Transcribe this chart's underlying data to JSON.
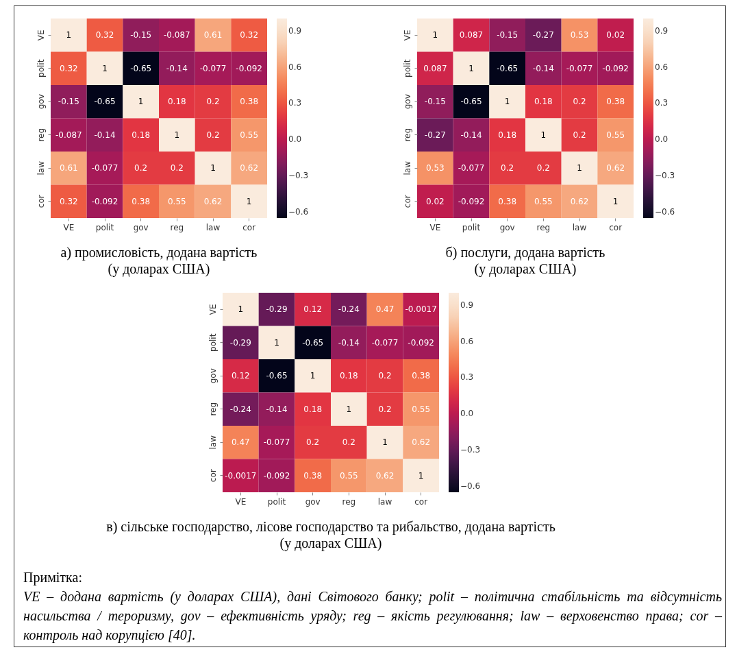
{
  "chart_data": [
    {
      "type": "heatmap",
      "title": "а) промисловість, додана вартість",
      "subtitle": "(у доларах США)",
      "categories": [
        "VE",
        "polit",
        "gov",
        "reg",
        "law",
        "cor"
      ],
      "y_categories": [
        "VE",
        "polit",
        "gov",
        "reg",
        "law",
        "cor"
      ],
      "cells": [
        [
          1,
          0.32,
          -0.15,
          -0.087,
          0.61,
          0.32
        ],
        [
          0.32,
          1,
          -0.65,
          -0.14,
          -0.077,
          -0.092
        ],
        [
          -0.15,
          -0.65,
          1,
          0.18,
          0.2,
          0.38
        ],
        [
          -0.087,
          -0.14,
          0.18,
          1,
          0.2,
          0.55
        ],
        [
          0.61,
          -0.077,
          0.2,
          0.2,
          1,
          0.62
        ],
        [
          0.32,
          -0.092,
          0.38,
          0.55,
          0.62,
          1
        ]
      ],
      "data_labels": true,
      "clim": [
        -0.65,
        1
      ],
      "cticks": [
        {
          "value": 0.9,
          "label": "0.9"
        },
        {
          "value": 0.6,
          "label": "0.6"
        },
        {
          "value": 0.3,
          "label": "0.3"
        },
        {
          "value": 0,
          "label": "0.0"
        },
        {
          "value": -0.3,
          "label": "−0.3"
        },
        {
          "value": -0.6,
          "label": "−0.6"
        }
      ]
    },
    {
      "type": "heatmap",
      "title": "б) послуги, додана вартість",
      "subtitle": "(у доларах США)",
      "categories": [
        "VE",
        "polit",
        "gov",
        "reg",
        "law",
        "cor"
      ],
      "y_categories": [
        "VE",
        "polit",
        "gov",
        "reg",
        "law",
        "cor"
      ],
      "cells": [
        [
          1,
          0.087,
          -0.15,
          -0.27,
          0.53,
          0.02
        ],
        [
          0.087,
          1,
          -0.65,
          -0.14,
          -0.077,
          -0.092
        ],
        [
          -0.15,
          -0.65,
          1,
          0.18,
          0.2,
          0.38
        ],
        [
          -0.27,
          -0.14,
          0.18,
          1,
          0.2,
          0.55
        ],
        [
          0.53,
          -0.077,
          0.2,
          0.2,
          1,
          0.62
        ],
        [
          0.02,
          -0.092,
          0.38,
          0.55,
          0.62,
          1
        ]
      ],
      "data_labels": true,
      "clim": [
        -0.65,
        1
      ],
      "cticks": [
        {
          "value": 0.9,
          "label": "0.9"
        },
        {
          "value": 0.6,
          "label": "0.6"
        },
        {
          "value": 0.3,
          "label": "0.3"
        },
        {
          "value": 0,
          "label": "0.0"
        },
        {
          "value": -0.3,
          "label": "−0.3"
        },
        {
          "value": -0.6,
          "label": "−0.6"
        }
      ]
    },
    {
      "type": "heatmap",
      "title": "в) сільське господарство, лісове господарство та рибальство, додана вартість",
      "subtitle": "(у доларах США)",
      "categories": [
        "VE",
        "polit",
        "gov",
        "reg",
        "law",
        "cor"
      ],
      "y_categories": [
        "VE",
        "polit",
        "gov",
        "reg",
        "law",
        "cor"
      ],
      "cells": [
        [
          1,
          -0.29,
          0.12,
          -0.24,
          0.47,
          -0.0017
        ],
        [
          -0.29,
          1,
          -0.65,
          -0.14,
          -0.077,
          -0.092
        ],
        [
          0.12,
          -0.65,
          1,
          0.18,
          0.2,
          0.38
        ],
        [
          -0.24,
          -0.14,
          0.18,
          1,
          0.2,
          0.55
        ],
        [
          0.47,
          -0.077,
          0.2,
          0.2,
          1,
          0.62
        ],
        [
          -0.0017,
          -0.092,
          0.38,
          0.55,
          0.62,
          1
        ]
      ],
      "data_labels": true,
      "clim": [
        -0.65,
        1
      ],
      "cticks": [
        {
          "value": 0.9,
          "label": "0.9"
        },
        {
          "value": 0.6,
          "label": "0.6"
        },
        {
          "value": 0.3,
          "label": "0.3"
        },
        {
          "value": 0,
          "label": "0.0"
        },
        {
          "value": -0.3,
          "label": "−0.3"
        },
        {
          "value": -0.6,
          "label": "−0.6"
        }
      ],
      "annotations": [
        "Примітка:",
        "VE – додана вартість (у доларах США), дані Світового банку; polit – політична стабільність та відсутність насильства / тероризму, gov – ефективність уряду; reg – якість регулювання; law – верховенство права; cor – контроль над корупцією [40]."
      ]
    }
  ]
}
